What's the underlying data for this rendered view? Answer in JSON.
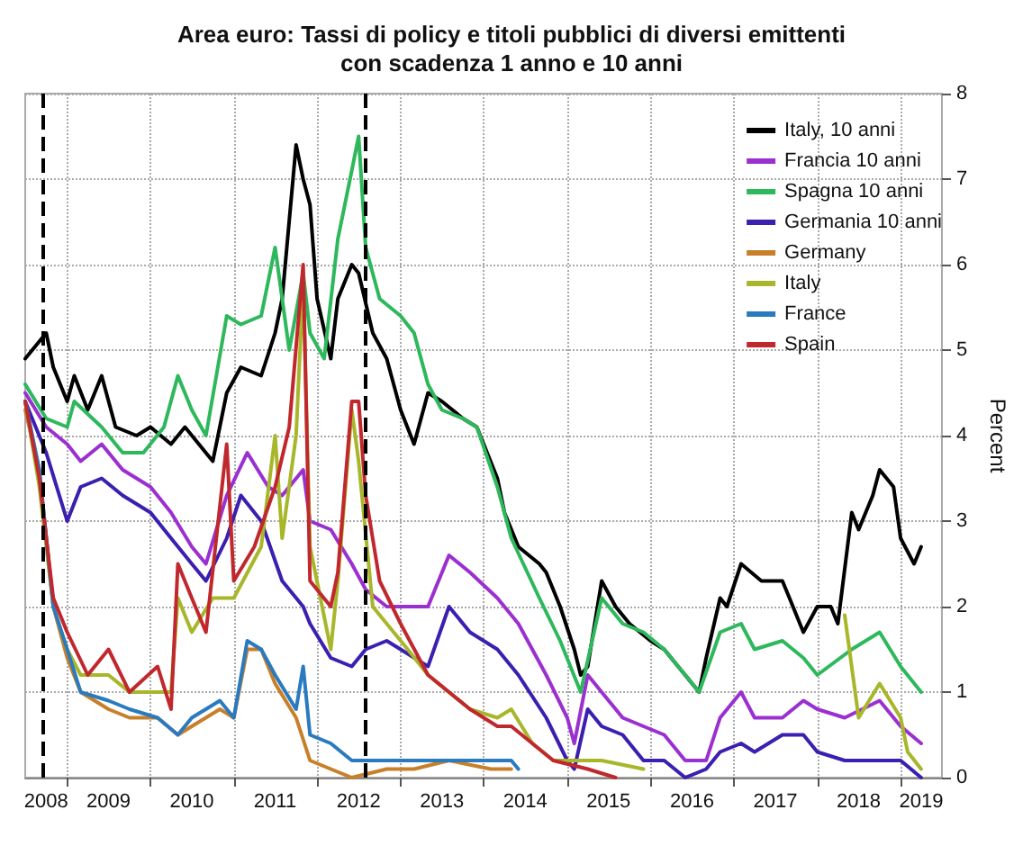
{
  "chart_data": {
    "type": "line",
    "title": "Area euro: Tassi di policy e titoli pubblici di diversi emittenti\ncon scadenza 1 anno e 10 anni",
    "ylabel": "Percent",
    "xlim": [
      "2008-07-01",
      "2019-07-01"
    ],
    "xticks": [
      {
        "value": "2009-01-01",
        "label": null
      },
      {
        "value": "2010-01-01",
        "label": null
      },
      {
        "value": "2011-01-01",
        "label": null
      },
      {
        "value": "2012-01-01",
        "label": null
      },
      {
        "value": "2013-01-01",
        "label": null
      },
      {
        "value": "2014-01-01",
        "label": null
      },
      {
        "value": "2015-01-01",
        "label": null
      },
      {
        "value": "2016-01-01",
        "label": null
      },
      {
        "value": "2017-01-01",
        "label": null
      },
      {
        "value": "2018-01-01",
        "label": null
      },
      {
        "value": "2019-01-01",
        "label": null
      },
      {
        "value": "2008-10-01",
        "label": "2008"
      },
      {
        "value": "2009-07-01",
        "label": "2009"
      },
      {
        "value": "2010-07-01",
        "label": "2010"
      },
      {
        "value": "2011-07-01",
        "label": "2011"
      },
      {
        "value": "2012-07-01",
        "label": "2012"
      },
      {
        "value": "2013-07-01",
        "label": "2013"
      },
      {
        "value": "2014-07-01",
        "label": "2014"
      },
      {
        "value": "2015-07-01",
        "label": "2015"
      },
      {
        "value": "2016-07-01",
        "label": "2016"
      },
      {
        "value": "2017-07-01",
        "label": "2017"
      },
      {
        "value": "2018-07-01",
        "label": "2018"
      },
      {
        "value": "2019-04-01",
        "label": "2019"
      }
    ],
    "ylim": [
      0,
      8
    ],
    "yticks": [
      0,
      1,
      2,
      3,
      4,
      5,
      6,
      7,
      8
    ],
    "grid": true,
    "legend": "top right",
    "marker": "none",
    "line_style": "solid",
    "ref_lines": [
      {
        "axis": "x",
        "value": "2008-09-15",
        "color": "#000000",
        "line_style": "dashed"
      },
      {
        "axis": "x",
        "value": "2012-07-26",
        "color": "#000000",
        "line_style": "dashed"
      }
    ],
    "series": [
      {
        "name": "Italy, 10 anni",
        "color": "#000000",
        "x": [
          "2008-07",
          "2008-10",
          "2008-11",
          "2009-01",
          "2009-02",
          "2009-04",
          "2009-06",
          "2009-08",
          "2009-11",
          "2010-01",
          "2010-04",
          "2010-06",
          "2010-08",
          "2010-10",
          "2010-12",
          "2011-02",
          "2011-05",
          "2011-07",
          "2011-08",
          "2011-10",
          "2011-11",
          "2011-12",
          "2012-01",
          "2012-03",
          "2012-04",
          "2012-06",
          "2012-07",
          "2012-09",
          "2012-11",
          "2013-01",
          "2013-03",
          "2013-05",
          "2013-07",
          "2013-10",
          "2013-12",
          "2014-03",
          "2014-04",
          "2014-06",
          "2014-09",
          "2014-10",
          "2014-12",
          "2015-02",
          "2015-03",
          "2015-04",
          "2015-06",
          "2015-08",
          "2015-10",
          "2016-01",
          "2016-03",
          "2016-05",
          "2016-08",
          "2016-09",
          "2016-11",
          "2016-12",
          "2017-02",
          "2017-05",
          "2017-08",
          "2017-09",
          "2017-11",
          "2018-01",
          "2018-03",
          "2018-04",
          "2018-06",
          "2018-07",
          "2018-09",
          "2018-10",
          "2018-12",
          "2019-01",
          "2019-03",
          "2019-04"
        ],
        "values": [
          4.9,
          5.2,
          4.8,
          4.4,
          4.7,
          4.3,
          4.7,
          4.1,
          4.0,
          4.1,
          3.9,
          4.1,
          3.9,
          3.7,
          4.5,
          4.8,
          4.7,
          5.2,
          5.6,
          7.4,
          7.0,
          6.7,
          5.6,
          4.9,
          5.6,
          6.0,
          5.9,
          5.2,
          4.9,
          4.3,
          3.9,
          4.5,
          4.4,
          4.2,
          4.1,
          3.5,
          3.1,
          2.7,
          2.5,
          2.4,
          2.0,
          1.5,
          1.2,
          1.3,
          2.3,
          2.0,
          1.8,
          1.6,
          1.5,
          1.3,
          1.0,
          1.4,
          2.1,
          2.0,
          2.5,
          2.3,
          2.3,
          2.1,
          1.7,
          2.0,
          2.0,
          1.8,
          3.1,
          2.9,
          3.3,
          3.6,
          3.4,
          2.8,
          2.5,
          2.7
        ]
      },
      {
        "name": "Francia 10 anni",
        "color": "#9b30d0",
        "x": [
          "2008-07",
          "2008-10",
          "2009-01",
          "2009-03",
          "2009-06",
          "2009-09",
          "2010-01",
          "2010-04",
          "2010-07",
          "2010-09",
          "2010-12",
          "2011-03",
          "2011-06",
          "2011-08",
          "2011-11",
          "2011-12",
          "2012-03",
          "2012-06",
          "2012-08",
          "2012-11",
          "2013-01",
          "2013-05",
          "2013-08",
          "2013-11",
          "2014-03",
          "2014-06",
          "2014-10",
          "2015-01",
          "2015-02",
          "2015-04",
          "2015-06",
          "2015-09",
          "2015-12",
          "2016-03",
          "2016-06",
          "2016-09",
          "2016-11",
          "2017-02",
          "2017-04",
          "2017-08",
          "2017-11",
          "2018-01",
          "2018-05",
          "2018-10",
          "2019-01",
          "2019-04"
        ],
        "values": [
          4.5,
          4.1,
          3.9,
          3.7,
          3.9,
          3.6,
          3.4,
          3.1,
          2.7,
          2.5,
          3.3,
          3.8,
          3.4,
          3.3,
          3.6,
          3.0,
          2.9,
          2.5,
          2.2,
          2.0,
          2.0,
          2.0,
          2.6,
          2.4,
          2.1,
          1.8,
          1.2,
          0.7,
          0.4,
          1.2,
          1.0,
          0.7,
          0.6,
          0.5,
          0.2,
          0.2,
          0.7,
          1.0,
          0.7,
          0.7,
          0.9,
          0.8,
          0.7,
          0.9,
          0.6,
          0.4
        ]
      },
      {
        "name": "Spagna 10 anni",
        "color": "#2eb85c",
        "x": [
          "2008-07",
          "2008-10",
          "2009-01",
          "2009-02",
          "2009-06",
          "2009-09",
          "2009-12",
          "2010-03",
          "2010-05",
          "2010-07",
          "2010-09",
          "2010-12",
          "2011-02",
          "2011-05",
          "2011-07",
          "2011-09",
          "2011-11",
          "2011-12",
          "2012-02",
          "2012-04",
          "2012-06",
          "2012-07",
          "2012-08",
          "2012-10",
          "2013-01",
          "2013-03",
          "2013-05",
          "2013-07",
          "2013-10",
          "2013-12",
          "2014-03",
          "2014-05",
          "2014-09",
          "2014-12",
          "2015-03",
          "2015-06",
          "2015-09",
          "2015-12",
          "2016-03",
          "2016-06",
          "2016-08",
          "2016-11",
          "2017-02",
          "2017-04",
          "2017-08",
          "2017-11",
          "2018-01",
          "2018-06",
          "2018-10",
          "2019-01",
          "2019-04"
        ],
        "values": [
          4.6,
          4.2,
          4.1,
          4.4,
          4.1,
          3.8,
          3.8,
          4.1,
          4.7,
          4.3,
          4.0,
          5.4,
          5.3,
          5.4,
          6.2,
          5.0,
          5.9,
          5.2,
          4.9,
          6.3,
          7.1,
          7.5,
          6.2,
          5.6,
          5.4,
          5.2,
          4.6,
          4.3,
          4.2,
          4.1,
          3.4,
          2.8,
          2.1,
          1.6,
          1.0,
          2.1,
          1.8,
          1.7,
          1.5,
          1.2,
          1.0,
          1.7,
          1.8,
          1.5,
          1.6,
          1.4,
          1.2,
          1.5,
          1.7,
          1.3,
          1.0
        ]
      },
      {
        "name": "Germania 10 anni",
        "color": "#3b1fb0",
        "x": [
          "2008-07",
          "2008-10",
          "2009-01",
          "2009-03",
          "2009-06",
          "2009-09",
          "2010-01",
          "2010-04",
          "2010-07",
          "2010-09",
          "2010-12",
          "2011-02",
          "2011-05",
          "2011-08",
          "2011-11",
          "2011-12",
          "2012-03",
          "2012-06",
          "2012-08",
          "2012-11",
          "2013-01",
          "2013-05",
          "2013-08",
          "2013-11",
          "2014-03",
          "2014-06",
          "2014-10",
          "2015-01",
          "2015-02",
          "2015-04",
          "2015-06",
          "2015-09",
          "2015-12",
          "2016-03",
          "2016-06",
          "2016-09",
          "2016-11",
          "2017-02",
          "2017-04",
          "2017-08",
          "2017-11",
          "2018-01",
          "2018-05",
          "2018-10",
          "2019-01",
          "2019-04"
        ],
        "values": [
          4.4,
          3.8,
          3.0,
          3.4,
          3.5,
          3.3,
          3.1,
          2.8,
          2.5,
          2.3,
          2.8,
          3.3,
          3.0,
          2.3,
          2.0,
          1.8,
          1.4,
          1.3,
          1.5,
          1.6,
          1.5,
          1.3,
          2.0,
          1.7,
          1.5,
          1.2,
          0.7,
          0.2,
          0.1,
          0.8,
          0.6,
          0.5,
          0.2,
          0.2,
          0.0,
          0.1,
          0.3,
          0.4,
          0.3,
          0.5,
          0.5,
          0.3,
          0.2,
          0.2,
          0.2,
          0.0
        ]
      },
      {
        "name": "Germany",
        "color": "#c87f2a",
        "x": [
          "2008-07",
          "2008-09",
          "2008-11",
          "2009-01",
          "2009-03",
          "2009-07",
          "2009-10",
          "2010-02",
          "2010-05",
          "2010-07",
          "2010-11",
          "2011-01",
          "2011-03",
          "2011-05",
          "2011-07",
          "2011-10",
          "2011-12",
          "2012-03",
          "2012-06",
          "2012-11",
          "2013-03",
          "2013-08",
          "2014-02",
          "2014-05"
        ],
        "values": [
          4.3,
          3.6,
          2.0,
          1.4,
          1.0,
          0.8,
          0.7,
          0.7,
          0.5,
          0.6,
          0.8,
          0.7,
          1.5,
          1.5,
          1.1,
          0.7,
          0.2,
          0.1,
          0.0,
          0.1,
          0.1,
          0.2,
          0.1,
          0.1
        ]
      },
      {
        "name": "Italy",
        "color": "#a8b62a",
        "x": [
          "2008-07",
          "2008-09",
          "2008-11",
          "2009-01",
          "2009-03",
          "2009-07",
          "2009-10",
          "2010-02",
          "2010-04",
          "2010-05",
          "2010-07",
          "2010-10",
          "2011-01",
          "2011-05",
          "2011-07",
          "2011-08",
          "2011-10",
          "2011-11",
          "2011-12",
          "2012-03",
          "2012-04",
          "2012-06",
          "2012-07",
          "2012-09",
          "2012-11",
          "2013-02",
          "2013-05",
          "2013-08",
          "2013-11",
          "2014-03",
          "2014-05",
          "2014-08",
          "2014-11",
          "2015-06",
          "2015-12",
          "2017-01",
          "2018-05",
          "2018-07",
          "2018-10",
          "2019-01",
          "2019-02",
          "2019-04"
        ],
        "values": [
          4.4,
          3.4,
          2.0,
          1.5,
          1.2,
          1.2,
          1.0,
          1.0,
          1.0,
          2.1,
          1.7,
          2.1,
          2.1,
          2.7,
          4.0,
          2.8,
          4.0,
          5.8,
          2.7,
          1.5,
          2.3,
          4.3,
          3.7,
          2.0,
          1.8,
          1.5,
          1.2,
          1.0,
          0.8,
          0.7,
          0.8,
          0.4,
          0.2,
          0.2,
          0.1,
          null,
          1.9,
          0.7,
          1.1,
          0.7,
          0.3,
          0.1
        ]
      },
      {
        "name": "France",
        "color": "#2a7ac0",
        "x": [
          "2008-07",
          "2008-09",
          "2008-11",
          "2009-01",
          "2009-03",
          "2009-07",
          "2009-10",
          "2010-02",
          "2010-05",
          "2010-07",
          "2010-11",
          "2011-01",
          "2011-03",
          "2011-05",
          "2011-07",
          "2011-10",
          "2011-11",
          "2011-12",
          "2012-03",
          "2012-06",
          "2012-11",
          "2013-03",
          "2013-08",
          "2014-02",
          "2014-05",
          "2014-06"
        ],
        "values": [
          4.4,
          3.6,
          2.0,
          1.5,
          1.0,
          0.9,
          0.8,
          0.7,
          0.5,
          0.7,
          0.9,
          0.7,
          1.6,
          1.5,
          1.2,
          0.8,
          1.3,
          0.5,
          0.4,
          0.2,
          0.2,
          0.2,
          0.2,
          0.2,
          0.2,
          0.1
        ]
      },
      {
        "name": "Spain",
        "color": "#c0282d",
        "x": [
          "2008-07",
          "2008-09",
          "2008-11",
          "2009-01",
          "2009-04",
          "2009-07",
          "2009-10",
          "2010-02",
          "2010-04",
          "2010-05",
          "2010-07",
          "2010-09",
          "2010-12",
          "2011-01",
          "2011-04",
          "2011-07",
          "2011-09",
          "2011-11",
          "2011-12",
          "2012-03",
          "2012-04",
          "2012-06",
          "2012-07",
          "2012-08",
          "2012-10",
          "2013-01",
          "2013-05",
          "2013-08",
          "2013-11",
          "2014-03",
          "2014-05",
          "2014-08",
          "2014-11",
          "2015-04",
          "2015-08"
        ],
        "values": [
          4.4,
          3.5,
          2.1,
          1.7,
          1.2,
          1.5,
          1.0,
          1.3,
          0.8,
          2.5,
          2.1,
          1.7,
          3.9,
          2.3,
          2.7,
          3.4,
          4.1,
          6.0,
          2.3,
          2.0,
          2.4,
          4.4,
          4.4,
          3.3,
          2.3,
          1.8,
          1.2,
          1.0,
          0.8,
          0.6,
          0.6,
          0.4,
          0.2,
          0.1,
          0.0
        ]
      }
    ]
  }
}
